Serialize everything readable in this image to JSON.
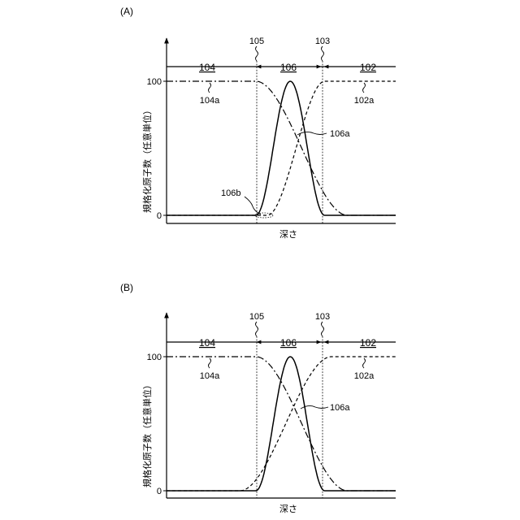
{
  "chart_data": [
    {
      "type": "line",
      "panel_label": "(A)",
      "ylabel": "規格化原子数（任意単位）",
      "xlabel": "深さ",
      "yticks": [
        "100",
        "0"
      ],
      "ylim": [
        0,
        100
      ],
      "xlim": [
        0,
        10
      ],
      "boundaries": [
        {
          "label": "105",
          "x": 3.9
        },
        {
          "label": "103",
          "x": 6.9
        }
      ],
      "regions": [
        {
          "label": "104",
          "from": 0,
          "to": 3.9
        },
        {
          "label": "106",
          "from": 3.9,
          "to": 6.9
        },
        {
          "label": "102",
          "from": 6.9,
          "to": 10
        }
      ],
      "series": [
        {
          "name": "104a",
          "style": "dash-dot",
          "shape": "falling",
          "start": 3.9,
          "end": 7.9
        },
        {
          "name": "102a",
          "style": "dashed",
          "shape": "rising",
          "start": 4.4,
          "end": 6.9
        },
        {
          "name": "106a",
          "style": "solid",
          "shape": "peak",
          "center": 5.4,
          "peak": 100,
          "start": 3.9,
          "end": 6.9
        }
      ],
      "annotations": [
        {
          "label": "106a",
          "target": "solid curve"
        },
        {
          "label": "106b",
          "target": "overlap region near x=3.9"
        }
      ]
    },
    {
      "type": "line",
      "panel_label": "(B)",
      "ylabel": "規格化原子数（任意単位）",
      "xlabel": "深さ",
      "yticks": [
        "100",
        "0"
      ],
      "ylim": [
        0,
        100
      ],
      "xlim": [
        0,
        10
      ],
      "boundaries": [
        {
          "label": "105",
          "x": 3.9
        },
        {
          "label": "103",
          "x": 6.9
        }
      ],
      "regions": [
        {
          "label": "104",
          "from": 0,
          "to": 3.9
        },
        {
          "label": "106",
          "from": 3.9,
          "to": 6.9
        },
        {
          "label": "102",
          "from": 6.9,
          "to": 10
        }
      ],
      "series": [
        {
          "name": "104a",
          "style": "dash-dot",
          "shape": "falling",
          "start": 3.9,
          "end": 7.9
        },
        {
          "name": "102a",
          "style": "dashed",
          "shape": "rising",
          "start": 3.2,
          "end": 7.2
        },
        {
          "name": "106a",
          "style": "solid",
          "shape": "peak",
          "center": 5.4,
          "peak": 100,
          "start": 3.9,
          "end": 6.9
        }
      ],
      "annotations": [
        {
          "label": "106a",
          "target": "solid curve"
        }
      ]
    }
  ]
}
